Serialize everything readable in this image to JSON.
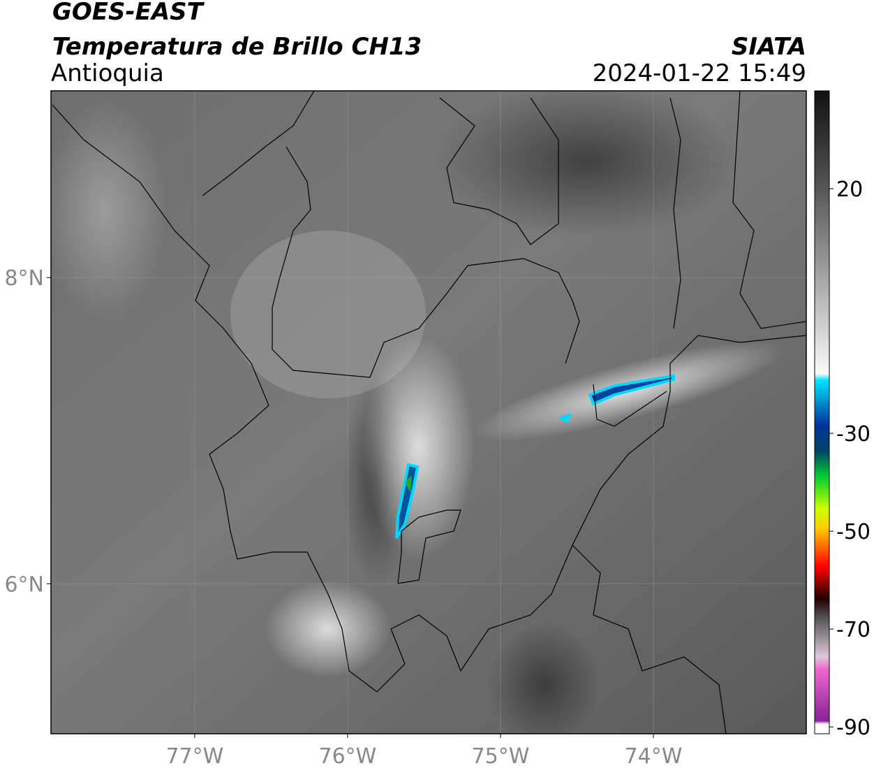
{
  "header": {
    "title": "GOES-EAST",
    "subtitle": "Temperatura de Brillo CH13",
    "region": "Antioquia",
    "source": "SIATA",
    "datetime": "2024-01-22 15:49"
  },
  "map": {
    "xlim": [
      -77.94,
      -73.0
    ],
    "ylim": [
      5.02,
      9.22
    ],
    "xticks": [
      {
        "value": -77,
        "label": "77°W"
      },
      {
        "value": -76,
        "label": "76°W"
      },
      {
        "value": -75,
        "label": "75°W"
      },
      {
        "value": -74,
        "label": "74°W"
      }
    ],
    "yticks": [
      {
        "value": 8,
        "label": "8°N"
      },
      {
        "value": 6,
        "label": "6°N"
      }
    ],
    "grid": true
  },
  "colorbar": {
    "clim": [
      -91.4,
      40
    ],
    "ticks": [
      20,
      -30,
      -50,
      -70,
      -90
    ]
  }
}
